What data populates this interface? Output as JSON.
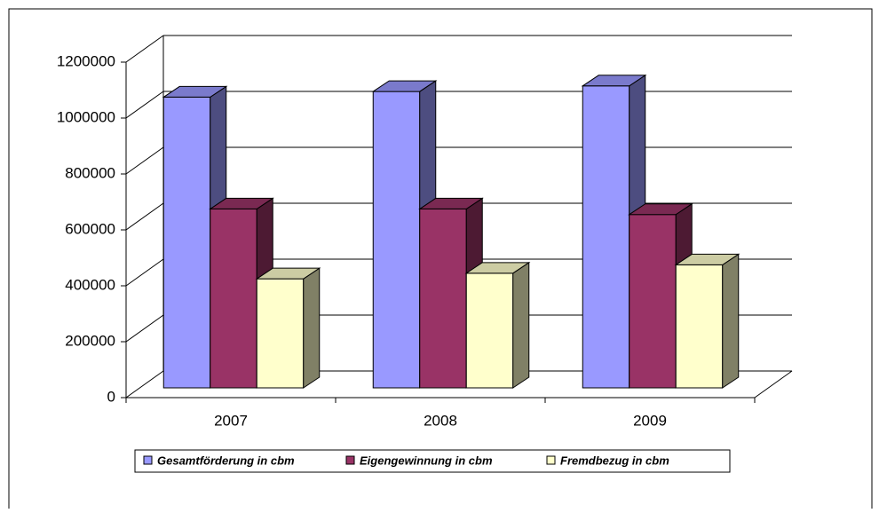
{
  "chart_data": {
    "type": "bar3d",
    "categories": [
      "2007",
      "2008",
      "2009"
    ],
    "series": [
      {
        "name": "Gesamtförderung in cbm",
        "color": "#9999ff",
        "values": [
          1040000,
          1060000,
          1080000
        ]
      },
      {
        "name": "Eigengewinnung in cbm",
        "color": "#993366",
        "values": [
          640000,
          640000,
          620000
        ]
      },
      {
        "name": "Fremdbezug in cbm",
        "color": "#ffffcc",
        "values": [
          390000,
          410000,
          440000
        ]
      }
    ],
    "ylim": [
      0,
      1200000
    ],
    "yticks": [
      0,
      200000,
      400000,
      600000,
      800000,
      1000000,
      1200000
    ],
    "grid": true,
    "legend": "bottom"
  }
}
